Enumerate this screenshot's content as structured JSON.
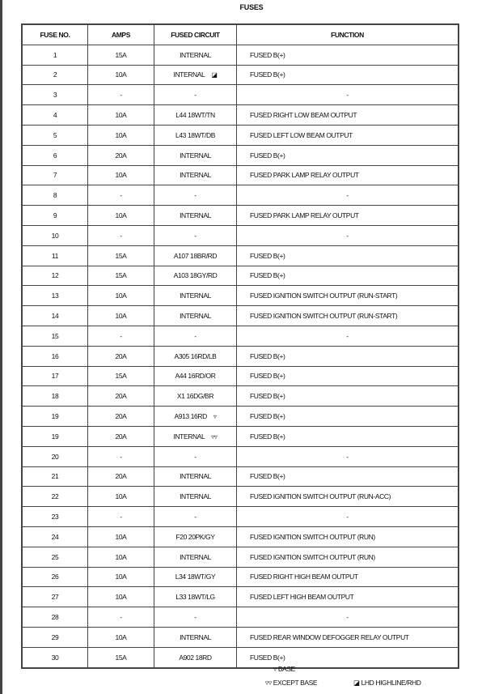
{
  "title": "FUSES",
  "headers": [
    "FUSE NO.",
    "AMPS",
    "FUSED CIRCUIT",
    "FUNCTION"
  ],
  "rows": [
    {
      "no": "1",
      "amps": "15A",
      "circuit": "INTERNAL",
      "sym": "",
      "function": "FUSED B(+)"
    },
    {
      "no": "2",
      "amps": "10A",
      "circuit": "INTERNAL",
      "sym": "◪",
      "function": "FUSED B(+)"
    },
    {
      "no": "3",
      "amps": "-",
      "circuit": "-",
      "sym": "",
      "function": "-"
    },
    {
      "no": "4",
      "amps": "10A",
      "circuit": "L44 18WT/TN",
      "sym": "",
      "function": "FUSED RIGHT LOW BEAM OUTPUT"
    },
    {
      "no": "5",
      "amps": "10A",
      "circuit": "L43 18WT/DB",
      "sym": "",
      "function": "FUSED LEFT LOW BEAM OUTPUT"
    },
    {
      "no": "6",
      "amps": "20A",
      "circuit": "INTERNAL",
      "sym": "",
      "function": "FUSED B(+)"
    },
    {
      "no": "7",
      "amps": "10A",
      "circuit": "INTERNAL",
      "sym": "",
      "function": "FUSED PARK LAMP RELAY OUTPUT"
    },
    {
      "no": "8",
      "amps": "-",
      "circuit": "-",
      "sym": "",
      "function": "-"
    },
    {
      "no": "9",
      "amps": "10A",
      "circuit": "INTERNAL",
      "sym": "",
      "function": "FUSED PARK LAMP RELAY OUTPUT"
    },
    {
      "no": "10",
      "amps": "-",
      "circuit": "-",
      "sym": "",
      "function": "-"
    },
    {
      "no": "11",
      "amps": "15A",
      "circuit": "A107 18BR/RD",
      "sym": "",
      "function": "FUSED B(+)"
    },
    {
      "no": "12",
      "amps": "15A",
      "circuit": "A103 18GY/RD",
      "sym": "",
      "function": "FUSED B(+)"
    },
    {
      "no": "13",
      "amps": "10A",
      "circuit": "INTERNAL",
      "sym": "",
      "function": "FUSED IGNITION SWITCH OUTPUT (RUN-START)"
    },
    {
      "no": "14",
      "amps": "10A",
      "circuit": "INTERNAL",
      "sym": "",
      "function": "FUSED IGNITION SWITCH OUTPUT (RUN-START)"
    },
    {
      "no": "15",
      "amps": "-",
      "circuit": "-",
      "sym": "",
      "function": "-"
    },
    {
      "no": "16",
      "amps": "20A",
      "circuit": "A305 16RD/LB",
      "sym": "",
      "function": "FUSED B(+)"
    },
    {
      "no": "17",
      "amps": "15A",
      "circuit": "A44 16RD/OR",
      "sym": "",
      "function": "FUSED B(+)"
    },
    {
      "no": "18",
      "amps": "20A",
      "circuit": "X1 16DG/BR",
      "sym": "",
      "function": "FUSED B(+)"
    },
    {
      "no": "19",
      "amps": "20A",
      "circuit": "A913 16RD",
      "sym": "▿",
      "function": "FUSED B(+)"
    },
    {
      "no": "19",
      "amps": "20A",
      "circuit": "INTERNAL",
      "sym": "▿▿",
      "function": "FUSED B(+)"
    },
    {
      "no": "20",
      "amps": "-",
      "circuit": "-",
      "sym": "",
      "function": "-"
    },
    {
      "no": "21",
      "amps": "20A",
      "circuit": "INTERNAL",
      "sym": "",
      "function": "FUSED B(+)"
    },
    {
      "no": "22",
      "amps": "10A",
      "circuit": "INTERNAL",
      "sym": "",
      "function": "FUSED IGNITION SWITCH OUTPUT (RUN-ACC)"
    },
    {
      "no": "23",
      "amps": "-",
      "circuit": "-",
      "sym": "",
      "function": "-"
    },
    {
      "no": "24",
      "amps": "10A",
      "circuit": "F20 20PK/GY",
      "sym": "",
      "function": "FUSED IGNITION SWITCH OUTPUT (RUN)"
    },
    {
      "no": "25",
      "amps": "10A",
      "circuit": "INTERNAL",
      "sym": "",
      "function": "FUSED IGNITION SWITCH OUTPUT (RUN)"
    },
    {
      "no": "26",
      "amps": "10A",
      "circuit": "L34 18WT/GY",
      "sym": "",
      "function": "FUSED RIGHT HIGH BEAM OUTPUT"
    },
    {
      "no": "27",
      "amps": "10A",
      "circuit": "L33 18WT/LG",
      "sym": "",
      "function": "FUSED LEFT HIGH BEAM OUTPUT"
    },
    {
      "no": "28",
      "amps": "-",
      "circuit": "-",
      "sym": "",
      "function": "-"
    },
    {
      "no": "29",
      "amps": "10A",
      "circuit": "INTERNAL",
      "sym": "",
      "function": "FUSED REAR WINDOW DEFOGGER RELAY OUTPUT"
    },
    {
      "no": "30",
      "amps": "15A",
      "circuit": "A902 18RD",
      "sym": "",
      "function": "FUSED B(+)"
    }
  ],
  "legend": {
    "base": "▿ BASE",
    "except_base": "▿▿ EXCEPT BASE",
    "lhd": "◪ LHD HIGHLINE/RHD"
  }
}
